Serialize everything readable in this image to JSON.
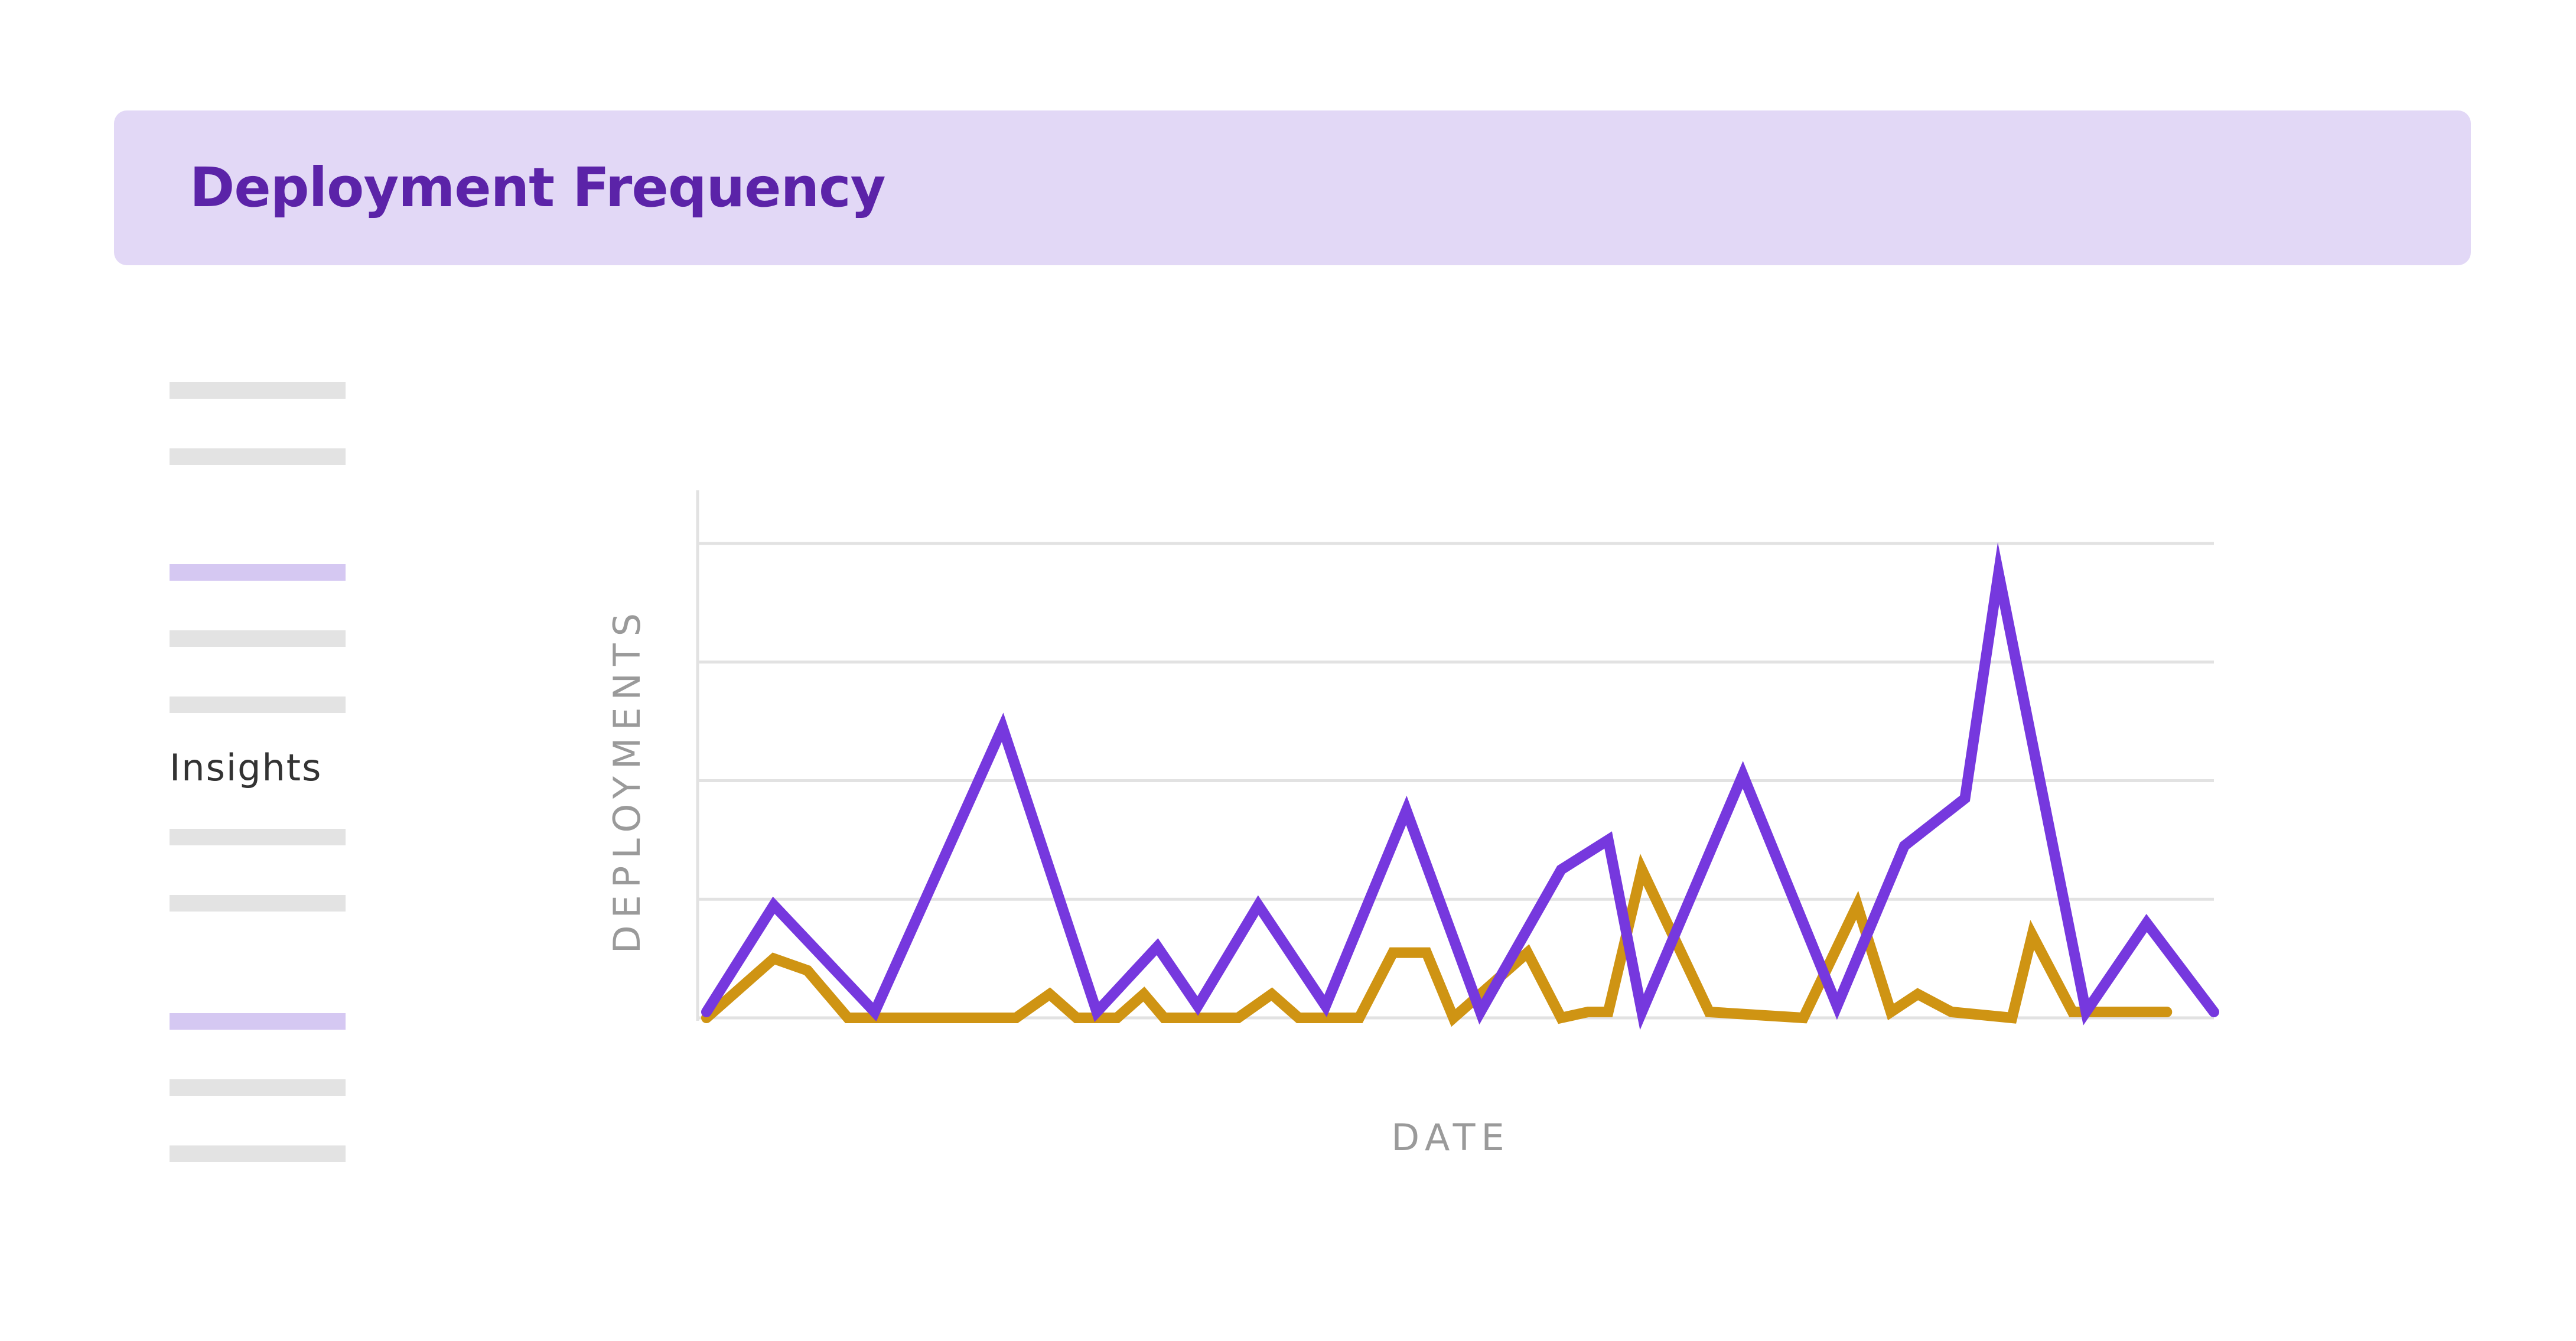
{
  "header": {
    "title": "Deployment Frequency"
  },
  "sidebar": {
    "items": [
      {
        "type": "placeholder",
        "active": false
      },
      {
        "type": "placeholder",
        "active": false
      },
      {
        "type": "placeholder",
        "active": true
      },
      {
        "type": "placeholder",
        "active": false
      },
      {
        "type": "placeholder",
        "active": false
      },
      {
        "type": "text",
        "label": "Insights"
      },
      {
        "type": "placeholder",
        "active": false
      },
      {
        "type": "placeholder",
        "active": false
      },
      {
        "type": "placeholder",
        "active": true
      },
      {
        "type": "placeholder",
        "active": false
      },
      {
        "type": "placeholder",
        "active": false
      }
    ]
  },
  "colors": {
    "header_bg": "#e2d8f6",
    "title": "#5b23a8",
    "series_purple": "#7638de",
    "series_gold": "#cf9413",
    "grid": "#e2e2e2",
    "axis_label": "#9a9a9a"
  },
  "chart_data": {
    "type": "line",
    "title": "",
    "xlabel": "DATE",
    "ylabel": "DEPLOYMENTS",
    "grid": true,
    "ylim": [
      0,
      4
    ],
    "yticks": [
      0,
      1,
      2,
      3,
      4
    ],
    "series": [
      {
        "color": "#7638de",
        "points": [
          [
            0.0,
            0.05
          ],
          [
            1.0,
            0.95
          ],
          [
            2.5,
            0.05
          ],
          [
            4.4,
            2.45
          ],
          [
            5.8,
            0.05
          ],
          [
            6.7,
            0.6
          ],
          [
            7.3,
            0.1
          ],
          [
            8.2,
            0.95
          ],
          [
            9.2,
            0.1
          ],
          [
            10.4,
            1.75
          ],
          [
            11.5,
            0.05
          ],
          [
            12.7,
            1.25
          ],
          [
            13.4,
            1.5
          ],
          [
            13.9,
            0.05
          ],
          [
            15.4,
            2.05
          ],
          [
            16.8,
            0.1
          ],
          [
            17.8,
            1.45
          ],
          [
            18.7,
            1.85
          ],
          [
            19.2,
            3.75
          ],
          [
            20.5,
            0.05
          ],
          [
            21.4,
            0.8
          ],
          [
            22.4,
            0.05
          ]
        ]
      },
      {
        "color": "#cf9413",
        "points": [
          [
            0.0,
            0.0
          ],
          [
            1.0,
            0.5
          ],
          [
            1.5,
            0.4
          ],
          [
            2.1,
            0.0
          ],
          [
            4.6,
            0.0
          ],
          [
            5.1,
            0.2
          ],
          [
            5.5,
            0.0
          ],
          [
            6.1,
            0.0
          ],
          [
            6.5,
            0.2
          ],
          [
            6.8,
            0.0
          ],
          [
            7.9,
            0.0
          ],
          [
            8.4,
            0.2
          ],
          [
            8.8,
            0.0
          ],
          [
            9.7,
            0.0
          ],
          [
            10.2,
            0.55
          ],
          [
            10.7,
            0.55
          ],
          [
            11.1,
            0.0
          ],
          [
            12.2,
            0.55
          ],
          [
            12.7,
            0.0
          ],
          [
            13.1,
            0.05
          ],
          [
            13.4,
            0.05
          ],
          [
            13.9,
            1.25
          ],
          [
            14.9,
            0.05
          ],
          [
            16.3,
            0.0
          ],
          [
            17.1,
            0.95
          ],
          [
            17.6,
            0.05
          ],
          [
            18.0,
            0.2
          ],
          [
            18.5,
            0.05
          ],
          [
            19.4,
            0.0
          ],
          [
            19.7,
            0.7
          ],
          [
            20.3,
            0.05
          ],
          [
            21.7,
            0.05
          ]
        ]
      }
    ]
  }
}
